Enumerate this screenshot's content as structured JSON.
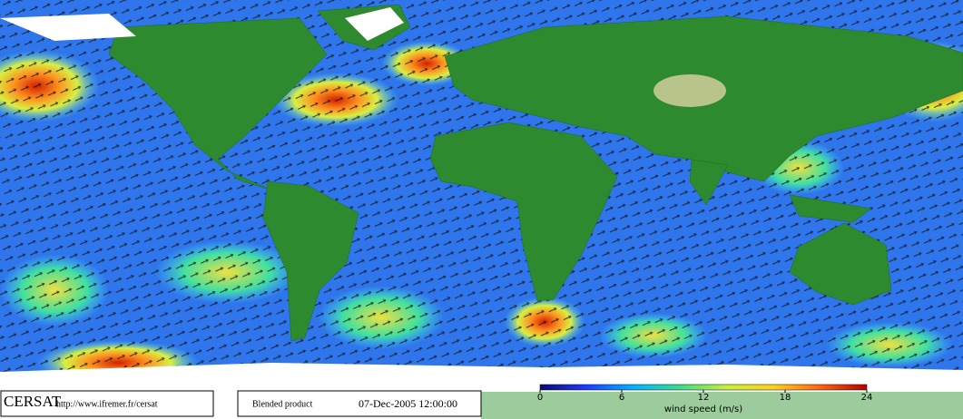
{
  "footer": {
    "logo": "CERSAT",
    "url": "http://www.ifremer.fr/cersat",
    "product": "Blended product",
    "datetime": "07-Dec-2005 12:00:00"
  },
  "colorbar": {
    "label": "wind speed (m/s)",
    "range": [
      0,
      24
    ],
    "ticks": [
      0,
      6,
      12,
      18,
      24
    ],
    "colors": [
      "#0a0a6e",
      "#1e3cff",
      "#00b4ff",
      "#3cdc8c",
      "#c8f03c",
      "#ffd21e",
      "#ff6414",
      "#b40000"
    ]
  }
}
